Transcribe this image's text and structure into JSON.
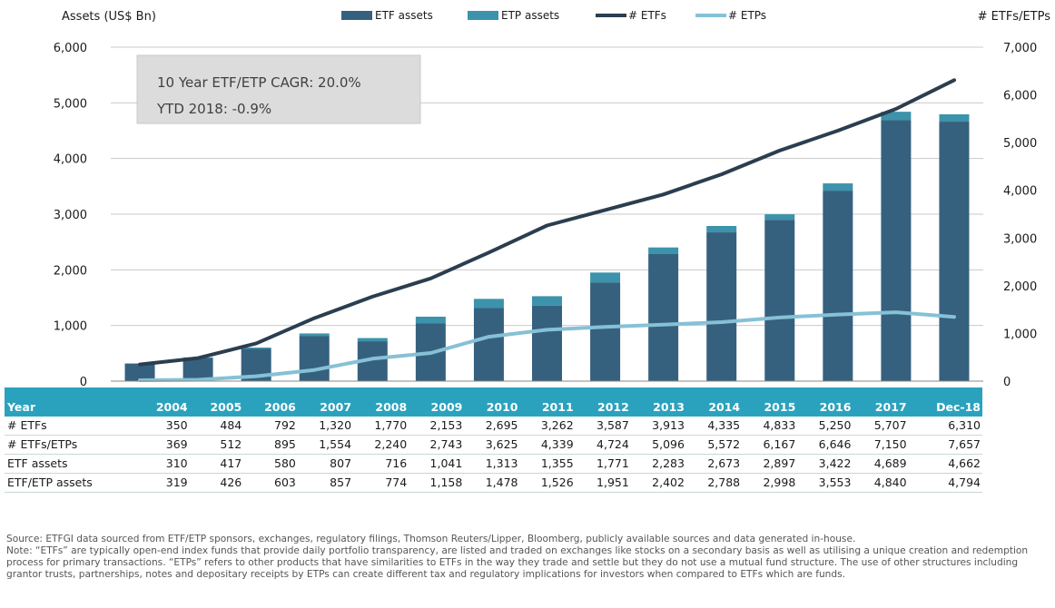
{
  "chart_data": {
    "type": "bar",
    "ylabel_left": "Assets (US$ Bn)",
    "ylabel_right": "# ETFs/ETPs",
    "categories": [
      "2004",
      "2005",
      "2006",
      "2007",
      "2008",
      "2009",
      "2010",
      "2011",
      "2012",
      "2013",
      "2014",
      "2015",
      "2016",
      "2017",
      "Dec-18"
    ],
    "ylim_left": [
      0,
      6000
    ],
    "ylim_right": [
      0,
      7000
    ],
    "yticks_left": [
      "0",
      "1,000",
      "2,000",
      "3,000",
      "4,000",
      "5,000",
      "6,000"
    ],
    "yticks_right": [
      "0",
      "1,000",
      "2,000",
      "3,000",
      "4,000",
      "5,000",
      "6,000",
      "7,000"
    ],
    "legend": {
      "position": "top-center",
      "entries": [
        {
          "label": "ETF assets",
          "color": "#35617f",
          "kind": "bar"
        },
        {
          "label": "ETP assets",
          "color": "#3c93ab",
          "kind": "bar"
        },
        {
          "label": "# ETFs",
          "color": "#2b3e50",
          "kind": "line"
        },
        {
          "label": "# ETPs",
          "color": "#86c1d6",
          "kind": "line"
        }
      ]
    },
    "series": [
      {
        "name": "ETF assets",
        "type": "bar",
        "axis": "left",
        "color": "#35617f",
        "values": [
          310,
          417,
          580,
          807,
          716,
          1041,
          1313,
          1355,
          1771,
          2283,
          2673,
          2897,
          3422,
          4689,
          4662
        ]
      },
      {
        "name": "ETP assets",
        "type": "bar",
        "axis": "left",
        "stacked_total": true,
        "color": "#3c93ab",
        "values": [
          319,
          426,
          603,
          857,
          774,
          1158,
          1478,
          1526,
          1951,
          2402,
          2788,
          2998,
          3553,
          4840,
          4794
        ]
      },
      {
        "name": "# ETFs",
        "type": "line",
        "axis": "right",
        "color": "#2b3e50",
        "values": [
          350,
          484,
          792,
          1320,
          1770,
          2153,
          2695,
          3262,
          3587,
          3913,
          4335,
          4833,
          5250,
          5707,
          6310
        ]
      },
      {
        "name": "# ETPs",
        "type": "line",
        "axis": "right",
        "color": "#86c1d6",
        "values": [
          19,
          28,
          103,
          234,
          470,
          590,
          930,
          1077,
          1137,
          1183,
          1237,
          1334,
          1396,
          1443,
          1347
        ]
      }
    ],
    "annotation": {
      "line1": "10 Year ETF/ETP CAGR: 20.0%",
      "line2": "YTD 2018: -0.9%"
    },
    "grid": true
  },
  "table": {
    "header_label": "Year",
    "years": [
      "2004",
      "2005",
      "2006",
      "2007",
      "2008",
      "2009",
      "2010",
      "2011",
      "2012",
      "2013",
      "2014",
      "2015",
      "2016",
      "2017",
      "Dec-18"
    ],
    "rows": [
      {
        "label": "# ETFs",
        "values": [
          "350",
          "484",
          "792",
          "1,320",
          "1,770",
          "2,153",
          "2,695",
          "3,262",
          "3,587",
          "3,913",
          "4,335",
          "4,833",
          "5,250",
          "5,707",
          "6,310"
        ]
      },
      {
        "label": "# ETFs/ETPs",
        "values": [
          "369",
          "512",
          "895",
          "1,554",
          "2,240",
          "2,743",
          "3,625",
          "4,339",
          "4,724",
          "5,096",
          "5,572",
          "6,167",
          "6,646",
          "7,150",
          "7,657"
        ]
      },
      {
        "label": "ETF assets",
        "values": [
          "310",
          "417",
          "580",
          "807",
          "716",
          "1,041",
          "1,313",
          "1,355",
          "1,771",
          "2,283",
          "2,673",
          "2,897",
          "3,422",
          "4,689",
          "4,662"
        ]
      },
      {
        "label": "ETF/ETP assets",
        "values": [
          "319",
          "426",
          "603",
          "857",
          "774",
          "1,158",
          "1,478",
          "1,526",
          "1,951",
          "2,402",
          "2,788",
          "2,998",
          "3,553",
          "4,840",
          "4,794"
        ]
      }
    ]
  },
  "notes": {
    "source": "Source: ETFGI data sourced from ETF/ETP sponsors, exchanges, regulatory filings, Thomson Reuters/Lipper, Bloomberg, publicly available sources and data generated in-house.",
    "note": "Note: “ETFs” are typically open-end index funds that provide daily portfolio transparency, are listed and traded on exchanges like stocks on a secondary basis as well as utilising a unique creation and redemption process for primary transactions. “ETPs” refers to other products that have similarities to ETFs in the way they trade and settle but they do not use a mutual fund structure. The use of other structures including grantor trusts, partnerships, notes and depositary receipts by ETPs can create different tax and regulatory implications for investors when compared to ETFs which are funds."
  }
}
